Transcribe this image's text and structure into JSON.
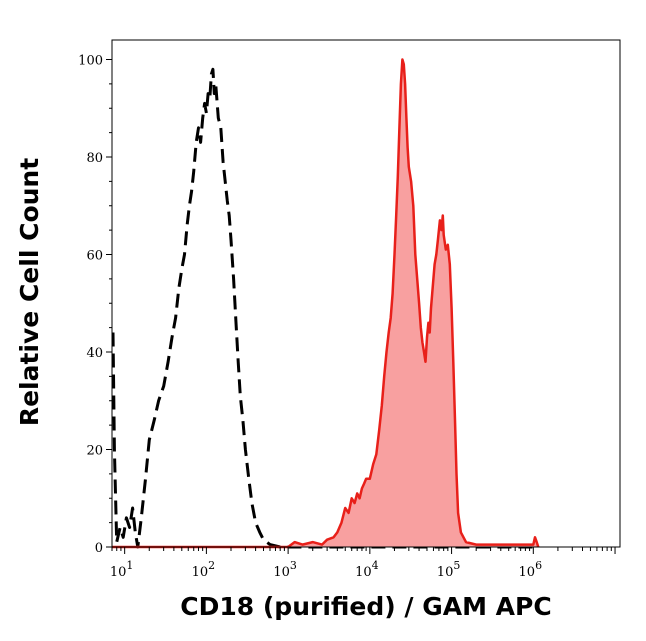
{
  "chart_data": {
    "type": "area",
    "title": "",
    "xlabel": "CD18 (purified) / GAM APC",
    "ylabel": "Relative Cell Count",
    "xscale": "log",
    "xlim": [
      7,
      11500000
    ],
    "ylim": [
      0,
      104
    ],
    "grid": false,
    "x_ticks": [
      {
        "value": 10,
        "base": "10",
        "exp": "1"
      },
      {
        "value": 100,
        "base": "10",
        "exp": "2"
      },
      {
        "value": 1000,
        "base": "10",
        "exp": "3"
      },
      {
        "value": 10000,
        "base": "10",
        "exp": "4"
      },
      {
        "value": 100000,
        "base": "10",
        "exp": "5"
      },
      {
        "value": 1000000,
        "base": "10",
        "exp": "6"
      }
    ],
    "y_ticks": [
      0,
      20,
      40,
      60,
      80,
      100
    ],
    "series": [
      {
        "style": "dashed",
        "color": "#000000",
        "fill": "none",
        "points": [
          [
            7.2,
            44
          ],
          [
            7.5,
            20
          ],
          [
            8,
            1
          ],
          [
            8.8,
            4
          ],
          [
            9.6,
            2
          ],
          [
            10.5,
            6
          ],
          [
            11.5,
            4
          ],
          [
            12.5,
            8
          ],
          [
            13.5,
            3
          ],
          [
            14.5,
            0
          ],
          [
            16,
            6
          ],
          [
            18,
            14
          ],
          [
            20,
            22
          ],
          [
            23,
            26
          ],
          [
            26,
            30
          ],
          [
            30,
            33
          ],
          [
            34,
            38
          ],
          [
            38,
            43
          ],
          [
            42,
            47
          ],
          [
            46,
            53
          ],
          [
            50,
            57
          ],
          [
            54,
            60
          ],
          [
            58,
            66
          ],
          [
            62,
            70
          ],
          [
            66,
            73
          ],
          [
            70,
            77
          ],
          [
            75,
            83
          ],
          [
            80,
            86
          ],
          [
            85,
            83
          ],
          [
            90,
            88
          ],
          [
            95,
            91
          ],
          [
            100,
            89
          ],
          [
            105,
            93
          ],
          [
            110,
            92
          ],
          [
            115,
            97
          ],
          [
            120,
            98
          ],
          [
            125,
            93
          ],
          [
            130,
            95
          ],
          [
            140,
            88
          ],
          [
            150,
            86
          ],
          [
            160,
            79
          ],
          [
            170,
            75
          ],
          [
            180,
            71
          ],
          [
            190,
            68
          ],
          [
            200,
            63
          ],
          [
            215,
            55
          ],
          [
            230,
            46
          ],
          [
            245,
            38
          ],
          [
            260,
            31
          ],
          [
            280,
            26
          ],
          [
            300,
            20
          ],
          [
            330,
            14
          ],
          [
            360,
            9
          ],
          [
            400,
            5
          ],
          [
            450,
            3
          ],
          [
            500,
            1.5
          ],
          [
            600,
            0.5
          ],
          [
            800,
            0
          ],
          [
            2000,
            0
          ],
          [
            10000,
            0
          ],
          [
            100000,
            0
          ],
          [
            1000000,
            0
          ]
        ]
      },
      {
        "style": "solid",
        "color": "#e8201a",
        "fill": "#f8a0a0",
        "points": [
          [
            7,
            0
          ],
          [
            1000,
            0
          ],
          [
            1200,
            1
          ],
          [
            1500,
            0.5
          ],
          [
            2000,
            1
          ],
          [
            2600,
            0.5
          ],
          [
            3000,
            1.5
          ],
          [
            3600,
            2
          ],
          [
            4000,
            3
          ],
          [
            4500,
            5
          ],
          [
            5000,
            8
          ],
          [
            5500,
            7
          ],
          [
            6000,
            10
          ],
          [
            6500,
            9
          ],
          [
            7000,
            11
          ],
          [
            7500,
            10
          ],
          [
            8000,
            12
          ],
          [
            8500,
            13
          ],
          [
            9000,
            14
          ],
          [
            10000,
            14
          ],
          [
            11000,
            17
          ],
          [
            12000,
            19
          ],
          [
            13000,
            24
          ],
          [
            14000,
            29
          ],
          [
            15000,
            35
          ],
          [
            16000,
            40
          ],
          [
            17000,
            44
          ],
          [
            18000,
            47
          ],
          [
            19000,
            52
          ],
          [
            20000,
            60
          ],
          [
            21000,
            68
          ],
          [
            22000,
            76
          ],
          [
            23000,
            86
          ],
          [
            24000,
            95
          ],
          [
            25000,
            100
          ],
          [
            26000,
            99
          ],
          [
            27000,
            95
          ],
          [
            28000,
            88
          ],
          [
            29000,
            82
          ],
          [
            30000,
            78
          ],
          [
            32000,
            75
          ],
          [
            34000,
            70
          ],
          [
            36000,
            60
          ],
          [
            38000,
            55
          ],
          [
            40000,
            50
          ],
          [
            42000,
            45
          ],
          [
            44000,
            42
          ],
          [
            46000,
            40
          ],
          [
            48000,
            38
          ],
          [
            50000,
            43
          ],
          [
            52000,
            46
          ],
          [
            54000,
            44
          ],
          [
            56000,
            49
          ],
          [
            58000,
            52
          ],
          [
            60000,
            55
          ],
          [
            62000,
            58
          ],
          [
            65000,
            60
          ],
          [
            68000,
            63
          ],
          [
            70000,
            65
          ],
          [
            72000,
            67
          ],
          [
            75000,
            65
          ],
          [
            78000,
            68
          ],
          [
            80000,
            64
          ],
          [
            85000,
            61
          ],
          [
            90000,
            62
          ],
          [
            95000,
            58
          ],
          [
            100000,
            49
          ],
          [
            105000,
            38
          ],
          [
            110000,
            26
          ],
          [
            115000,
            15
          ],
          [
            120000,
            7
          ],
          [
            130000,
            3
          ],
          [
            150000,
            1
          ],
          [
            200000,
            0.5
          ],
          [
            400000,
            0.5
          ],
          [
            1000000,
            0.5
          ],
          [
            1050000,
            2
          ],
          [
            1100000,
            1
          ],
          [
            1150000,
            0
          ]
        ]
      }
    ]
  }
}
